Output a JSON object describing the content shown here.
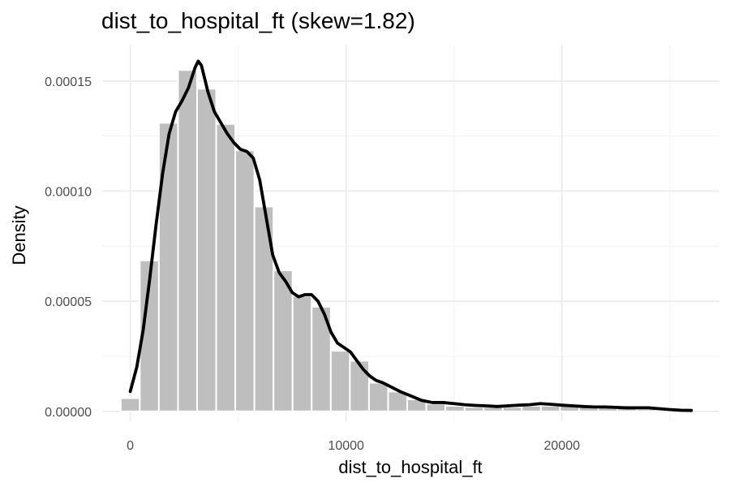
{
  "chart_data": {
    "type": "bar",
    "title": "dist_to_hospital_ft (skew=1.82)",
    "xlabel": "dist_to_hospital_ft",
    "ylabel": "Density",
    "xlim": [
      -1300,
      27300
    ],
    "ylim": [
      -4.5e-06,
      0.0001665
    ],
    "x_ticks": [
      0,
      10000,
      20000
    ],
    "x_tick_labels": [
      "0",
      "10000",
      "20000"
    ],
    "y_ticks": [
      0,
      5e-05,
      0.0001,
      0.00015
    ],
    "y_tick_labels": [
      "0.00000",
      "0.00005",
      "0.00010",
      "0.00015"
    ],
    "grid": true,
    "colors": {
      "bars": "#bebebe",
      "bar_outline": "#ffffff",
      "density_line": "#000000",
      "grid": "#ebebeb"
    },
    "histogram": {
      "bin_width": 885,
      "bin_starts": [
        -443,
        442,
        1327,
        2212,
        3097,
        3982,
        4867,
        5752,
        6637,
        7522,
        8407,
        9292,
        10177,
        11062,
        11947,
        12832,
        13717,
        14602,
        15487,
        16372,
        17257,
        18142,
        19027,
        19912,
        20797,
        21682,
        22567,
        23452,
        24337,
        25222
      ],
      "values": [
        6e-06,
        6.85e-05,
        0.000131,
        0.000155,
        0.0001465,
        0.0001305,
        0.0001185,
        9.3e-05,
        6.4e-05,
        5.25e-05,
        4.75e-05,
        2.75e-05,
        2.3e-05,
        1.3e-05,
        9e-06,
        5.5e-06,
        3.5e-06,
        2.5e-06,
        2e-06,
        2e-06,
        2e-06,
        2.5e-06,
        2.5e-06,
        2.5e-06,
        2e-06,
        2e-06,
        1.5e-06,
        1e-06,
        8e-07,
        5e-07
      ]
    },
    "density_curve": {
      "x": [
        0,
        300,
        600,
        900,
        1200,
        1500,
        1800,
        2100,
        2400,
        2700,
        3000,
        3150,
        3300,
        3600,
        3900,
        4200,
        4500,
        4800,
        5100,
        5400,
        5700,
        6000,
        6300,
        6600,
        6900,
        7200,
        7500,
        7800,
        8100,
        8400,
        8700,
        9000,
        9300,
        9600,
        9900,
        10200,
        10500,
        10800,
        11100,
        11400,
        11700,
        12000,
        12500,
        13000,
        13500,
        14000,
        14500,
        15000,
        15500,
        16000,
        16500,
        17000,
        17500,
        18000,
        18500,
        19000,
        19500,
        20000,
        20500,
        21000,
        21500,
        22000,
        22500,
        23000,
        23500,
        24000,
        24500,
        25000,
        25500,
        26000
      ],
      "y": [
        9e-06,
        2e-05,
        3.7e-05,
        6e-05,
        8.5e-05,
        0.000108,
        0.000126,
        0.000136,
        0.000141,
        0.000147,
        0.000156,
        0.000159,
        0.000157,
        0.000145,
        0.000136,
        0.000131,
        0.000126,
        0.000122,
        0.000119,
        0.000118,
        0.000115,
        0.000105,
        8.8e-05,
        7.1e-05,
        6.3e-05,
        5.9e-05,
        5.4e-05,
        5.2e-05,
        5.3e-05,
        5.3e-05,
        5e-05,
        4.4e-05,
        3.6e-05,
        3.1e-05,
        2.9e-05,
        2.7e-05,
        2.3e-05,
        1.9e-05,
        1.6e-05,
        1.4e-05,
        1.3e-05,
        1.15e-05,
        9e-06,
        7e-06,
        5e-06,
        4e-06,
        4e-06,
        3.5e-06,
        3e-06,
        2.7e-06,
        2.5e-06,
        2.2e-06,
        2.5e-06,
        2.8e-06,
        3e-06,
        3.5e-06,
        3.2e-06,
        2.8e-06,
        2.5e-06,
        2.2e-06,
        2e-06,
        2e-06,
        1.8e-06,
        1.6e-06,
        1.6e-06,
        1.6e-06,
        1.2e-06,
        8e-07,
        5e-07,
        4e-07
      ]
    }
  }
}
